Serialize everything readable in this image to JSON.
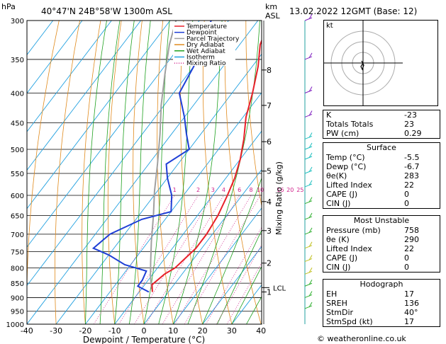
{
  "header": {
    "location": "40°47'N  24B°58'W  1300m  ASL",
    "pressure_unit": "hPa",
    "km_label": "km",
    "asl_label": "ASL",
    "datetime": "13.02.2022  12GMT  (Base: 12)"
  },
  "chart_data": {
    "type": "line",
    "xlabel": "Dewpoint / Temperature (°C)",
    "ylabel": "",
    "right_label": "Mixing Ratio (g/kg)",
    "x_ticks": [
      -40,
      -30,
      -20,
      -10,
      0,
      10,
      20,
      30,
      40
    ],
    "xlim": [
      -40,
      40
    ],
    "p_ticks": [
      300,
      350,
      400,
      450,
      500,
      550,
      600,
      650,
      700,
      750,
      800,
      850,
      900,
      950,
      1000
    ],
    "ylim": [
      1000,
      300
    ],
    "y_scale": "log",
    "km_ticks": [
      {
        "km": "1",
        "p": 880
      },
      {
        "km": "2",
        "p": 785
      },
      {
        "km": "3",
        "p": 690
      },
      {
        "km": "4",
        "p": 615
      },
      {
        "km": "5",
        "p": 545
      },
      {
        "km": "6",
        "p": 485
      },
      {
        "km": "7",
        "p": 420
      },
      {
        "km": "8",
        "p": 365
      }
    ],
    "lcl": {
      "label": "LCL",
      "p": 865
    },
    "mixing_ratio_labels": [
      "1",
      "2",
      "3",
      "4",
      "6",
      "8",
      "10",
      "16",
      "20",
      "25"
    ],
    "legend": [
      "Temperature",
      "Dewpoint",
      "Parcel Trajectory",
      "Dry Adiabat",
      "Wet Adiabat",
      "Isotherm",
      "Mixing Ratio"
    ],
    "legend_position": "top-center",
    "colors": {
      "temperature": "#e8202a",
      "dewpoint": "#1f3fd6",
      "parcel": "#a0a0a0",
      "dry_adiabat": "#e08a1c",
      "wet_adiabat": "#1fa11f",
      "isotherm": "#20a0e0",
      "mixing_ratio": "#d0208a",
      "wind": "#20c0c0"
    },
    "series": [
      {
        "name": "Temperature",
        "points": [
          [
            -5.5,
            880
          ],
          [
            -7.5,
            855
          ],
          [
            -6,
            820
          ],
          [
            -4,
            800
          ],
          [
            -2,
            740
          ],
          [
            -2,
            700
          ],
          [
            -3,
            650
          ],
          [
            -5,
            600
          ],
          [
            -7,
            560
          ],
          [
            -10,
            520
          ],
          [
            -14,
            480
          ],
          [
            -19,
            440
          ],
          [
            -23,
            400
          ],
          [
            -28,
            360
          ],
          [
            -33,
            330
          ],
          [
            -36,
            300
          ]
        ]
      },
      {
        "name": "Dewpoint",
        "points": [
          [
            -6.7,
            880
          ],
          [
            -12,
            860
          ],
          [
            -12,
            840
          ],
          [
            -13,
            810
          ],
          [
            -22,
            790
          ],
          [
            -30,
            760
          ],
          [
            -37,
            740
          ],
          [
            -35,
            700
          ],
          [
            -28,
            660
          ],
          [
            -20,
            640
          ],
          [
            -24,
            600
          ],
          [
            -30,
            560
          ],
          [
            -34,
            530
          ],
          [
            -30,
            500
          ],
          [
            -35,
            470
          ],
          [
            -40,
            440
          ],
          [
            -48,
            400
          ],
          [
            -50,
            360
          ],
          [
            -53,
            330
          ],
          [
            -56,
            300
          ]
        ]
      },
      {
        "name": "Parcel Trajectory",
        "points": [
          [
            -6.5,
            870
          ],
          [
            -10,
            830
          ],
          [
            -14,
            780
          ],
          [
            -19,
            720
          ],
          [
            -25,
            650
          ],
          [
            -31,
            590
          ],
          [
            -37,
            530
          ],
          [
            -44,
            470
          ],
          [
            -51,
            420
          ],
          [
            -58,
            370
          ],
          [
            -64,
            330
          ],
          [
            -68,
            300
          ]
        ]
      }
    ]
  },
  "hodograph": {
    "label": "kt"
  },
  "table": {
    "k_label": "K",
    "k": "-23",
    "tt_label": "Totals Totals",
    "tt": "23",
    "pw_label": "PW (cm)",
    "pw": "0.29",
    "surface": {
      "title": "Surface",
      "temp_label": "Temp (°C)",
      "temp": "-5.5",
      "dewp_label": "Dewp (°C)",
      "dewp": "-6.7",
      "theta_label": "θe(K)",
      "theta": "283",
      "li_label": "Lifted Index",
      "li": "22",
      "cape_label": "CAPE (J)",
      "cape": "0",
      "cin_label": "CIN (J)",
      "cin": "0"
    },
    "most_unstable": {
      "title": "Most Unstable",
      "pres_label": "Pressure (mb)",
      "pres": "758",
      "theta_label": "θe (K)",
      "theta": "290",
      "li_label": "Lifted Index",
      "li": "22",
      "cape_label": "CAPE (J)",
      "cape": "0",
      "cin_label": "CIN (J)",
      "cin": "0"
    },
    "hodograph": {
      "title": "Hodograph",
      "eh_label": "EH",
      "eh": "17",
      "sreh_label": "SREH",
      "sreh": "136",
      "stmdir_label": "StmDir",
      "stmdir": "40°",
      "stmspd_label": "StmSpd (kt)",
      "stmspd": "17"
    }
  },
  "footer": "© weatheronline.co.uk"
}
